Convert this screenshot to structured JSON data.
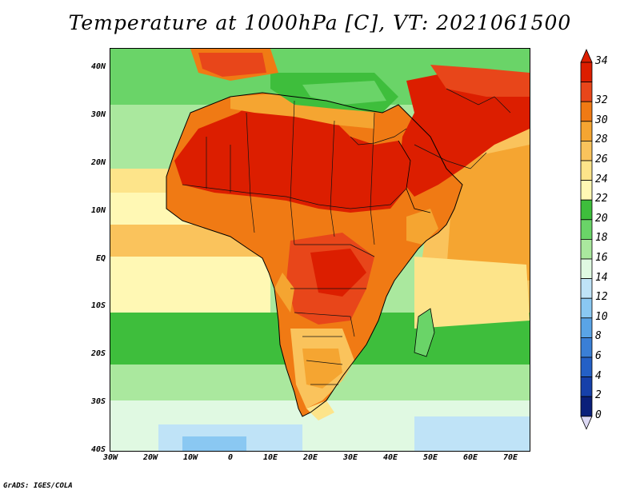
{
  "title": "Temperature at 1000hPa [C], VT: 2021061500",
  "credit": "GrADS: IGES/COLA",
  "lat_labels": [
    "40N",
    "30N",
    "20N",
    "10N",
    "EQ",
    "10S",
    "20S",
    "30S",
    "40S"
  ],
  "lon_labels": [
    "30W",
    "20W",
    "10W",
    "0",
    "10E",
    "20E",
    "30E",
    "40E",
    "50E",
    "60E",
    "70E"
  ],
  "colorbar": {
    "labels": [
      "34",
      "32",
      "30",
      "28",
      "26",
      "24",
      "22",
      "20",
      "18",
      "16",
      "14",
      "12",
      "10",
      "8",
      "6",
      "4",
      "2",
      "0"
    ],
    "colors": [
      "#dc1e00",
      "#e8461a",
      "#f07a14",
      "#f5a531",
      "#fac35c",
      "#fde48a",
      "#fff8b4",
      "#3ebe3c",
      "#6ad468",
      "#aae89e",
      "#e0f9e2",
      "#bfe3f7",
      "#8ac8f2",
      "#5aa4e6",
      "#3a7fd6",
      "#2460c6",
      "#1640aa",
      "#0a1f7a"
    ],
    "under_color": "#ddd9f4"
  },
  "palette": {
    "ocean_cool": "#aae89e",
    "hot": "#dc1e00",
    "warm": "#f07a14",
    "mild": "#fde48a",
    "cold": "#8ac8f2"
  }
}
